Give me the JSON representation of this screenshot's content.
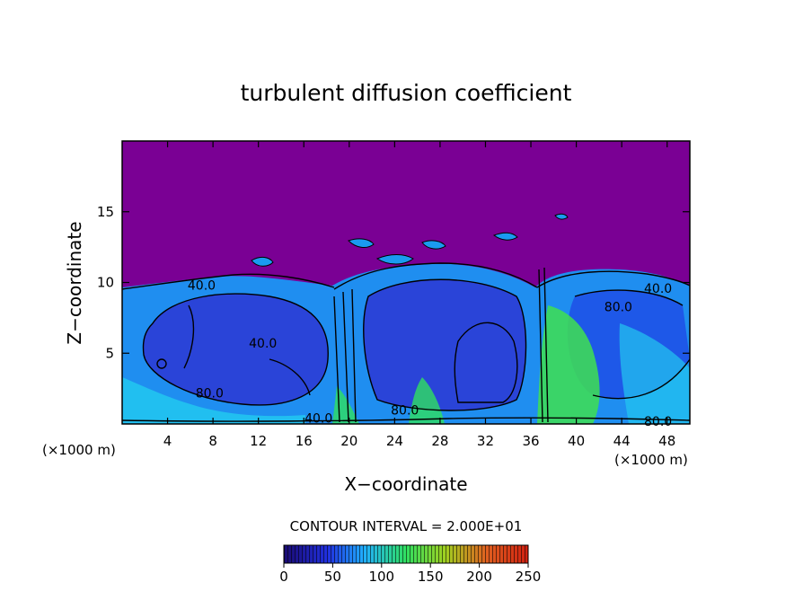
{
  "chart_data": {
    "type": "heatmap",
    "title": "turbulent diffusion coefficient",
    "xlabel": "X−coordinate",
    "ylabel": "Z−coordinate",
    "x_unit_left": "(×1000 m)",
    "x_unit_right": "(×1000 m)",
    "xlim": [
      0,
      50
    ],
    "ylim": [
      0,
      20
    ],
    "xticks": [
      4,
      8,
      12,
      16,
      20,
      24,
      28,
      32,
      36,
      40,
      44,
      48
    ],
    "yticks": [
      5,
      10,
      15
    ],
    "contour_interval_text": "CONTOUR INTERVAL = 2.000E+01",
    "colorbar": {
      "min": 0,
      "max": 250,
      "ticks": [
        0,
        50,
        100,
        150,
        200,
        250
      ]
    },
    "contour_labels": [
      {
        "x": 7.0,
        "z": 9.8,
        "text": "40.0"
      },
      {
        "x": 12.4,
        "z": 5.7,
        "text": "40.0"
      },
      {
        "x": 7.7,
        "z": 2.2,
        "text": "80.0"
      },
      {
        "x": 17.3,
        "z": 0.4,
        "text": "40.0"
      },
      {
        "x": 24.9,
        "z": 1.0,
        "text": "80.0"
      },
      {
        "x": 43.7,
        "z": 8.3,
        "text": "80.0"
      },
      {
        "x": 47.2,
        "z": 9.6,
        "text": "40.0"
      },
      {
        "x": 47.2,
        "z": 0.2,
        "text": "80.0"
      }
    ],
    "background_color": "#7a0094"
  }
}
